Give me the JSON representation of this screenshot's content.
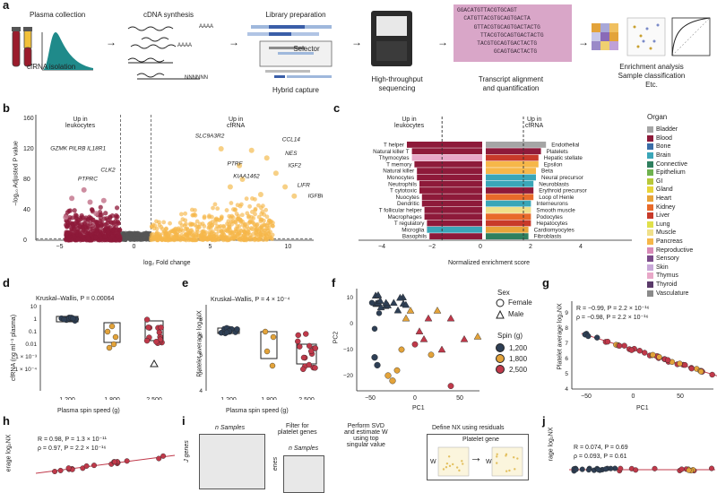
{
  "panel_a": {
    "label": "a",
    "steps": {
      "plasma": "Plasma collection",
      "cfrna": "cfRNA isolation",
      "cdna": "cDNA synthesis",
      "library": "Library preparation",
      "selector": "Selector",
      "hybrid": "Hybrid capture",
      "sequencing": "High-throughput\nsequencing",
      "alignment": "Transcript alignment\nand quantification",
      "enrichment": "Enrichment analysis\nSample classification\nEtc."
    },
    "cdna_tags": [
      "AAAA",
      "AAAA",
      "NNNNNN"
    ],
    "sequences": [
      "GGACATGTTACGTGCAGT",
      "  CATGTTACGTGCAGTGACTA",
      "     GTTACGTGCAGTGACTACTG",
      "       TTACGTGCAGTGACTACTG",
      "      TACGTGCAGTGACTACTG",
      "           GCAGTGACTACTG"
    ]
  },
  "panel_b": {
    "label": "b",
    "ylabel": "−log₁₀ Adjusted P value",
    "xlabel": "log₂ Fold change",
    "up_left": "Up in\nleukocytes",
    "up_right": "Up in\ncfRNA",
    "genes_left": [
      "GZMK",
      "PILRB",
      "IL18R1",
      "CLK2",
      "PTPRC"
    ],
    "genes_right": [
      "SLC9A3R2",
      "CCL14",
      "NES",
      "PTRF",
      "IGF2",
      "KIAA1462",
      "LIFR",
      "IGFBP5"
    ],
    "xticks": [
      "−5",
      "0",
      "5",
      "10"
    ],
    "yticks": [
      "0",
      "40",
      "80",
      "120",
      "160"
    ],
    "colors": {
      "left": "#8e1a3a",
      "right": "#f6b749",
      "mid": "#555555"
    }
  },
  "panel_c": {
    "label": "c",
    "up_left": "Up in\nleukocytes",
    "up_right": "Up in\ncfRNA",
    "xlabel": "Normalized enrichment score",
    "xticks": [
      "−4",
      "−2",
      "0",
      "2",
      "4"
    ],
    "left_labels": [
      "T helper",
      "Natural killer T",
      "Thymocytes",
      "T memory",
      "Natural killer",
      "Monocytes",
      "Neutrophils",
      "T cytotoxic",
      "Nuocytes",
      "Dendritic",
      "T follicular helper",
      "Macrophages",
      "T regulatory",
      "Microglia",
      "Basophils"
    ],
    "right_labels": [
      "Endothelial",
      "Platelets",
      "Hepatic stellate",
      "Epsilon",
      "Beta",
      "Neural precursor",
      "Neuroblasts",
      "Erythroid precursor",
      "Loop of Henle",
      "Interneurons",
      "Smooth muscle",
      "Podocytes",
      "Hepatocytes",
      "Cardiomyocytes",
      "Fibroblasts"
    ],
    "legend_title": "Organ",
    "legend": [
      {
        "name": "Bladder",
        "color": "#a5a5a5"
      },
      {
        "name": "Blood",
        "color": "#8e1a3a"
      },
      {
        "name": "Bone",
        "color": "#3a6ea8"
      },
      {
        "name": "Brain",
        "color": "#3aa6b8"
      },
      {
        "name": "Connective",
        "color": "#2f7f5f"
      },
      {
        "name": "Epithelium",
        "color": "#6fb24f"
      },
      {
        "name": "GI",
        "color": "#b8c83a"
      },
      {
        "name": "Gland",
        "color": "#e8d43a"
      },
      {
        "name": "Heart",
        "color": "#e8a33a"
      },
      {
        "name": "Kidney",
        "color": "#e86a2a"
      },
      {
        "name": "Liver",
        "color": "#c83a2a"
      },
      {
        "name": "Lung",
        "color": "#e0e04a"
      },
      {
        "name": "Muscle",
        "color": "#f0e08a"
      },
      {
        "name": "Pancreas",
        "color": "#f6b749"
      },
      {
        "name": "Reproductive",
        "color": "#d88ab8"
      },
      {
        "name": "Sensory",
        "color": "#7a4a8a"
      },
      {
        "name": "Skin",
        "color": "#c8a8d8"
      },
      {
        "name": "Thymus",
        "color": "#e8a8c8"
      },
      {
        "name": "Thyroid",
        "color": "#5a3a6a"
      },
      {
        "name": "Vasculature",
        "color": "#8a8a8a"
      }
    ]
  },
  "panel_d": {
    "label": "d",
    "title": "Kruskal–Wallis, P = 0.00064",
    "ylabel": "cfRNA (ng ml⁻¹ plasma)",
    "xlabel": "Plasma spin speed (g)",
    "xticks": [
      "1,200",
      "1,800",
      "2,500"
    ],
    "yticks": [
      "10",
      "1",
      "0.1",
      "0.01",
      "1 × 10⁻³",
      "1 × 10⁻⁴"
    ]
  },
  "panel_e": {
    "label": "e",
    "title": "Kruskal–Wallis, P = 4 × 10⁻⁴",
    "ylabel": "Platelet average log₂NX",
    "xlabel": "Plasma spin speed (g)",
    "xticks": [
      "1,200",
      "1,800",
      "2,500"
    ],
    "yticks": [
      "8",
      "7",
      "6",
      "5",
      "4"
    ]
  },
  "panel_f": {
    "label": "f",
    "xlabel": "PC1",
    "ylabel": "PC2",
    "xticks": [
      "−50",
      "0",
      "50"
    ],
    "yticks": [
      "10",
      "0",
      "−10",
      "−20"
    ],
    "sex_title": "Sex",
    "sex": [
      "Female",
      "Male"
    ],
    "spin_title": "Spin (g)",
    "spin": [
      {
        "name": "1,200",
        "color": "#2e3f55"
      },
      {
        "name": "1,800",
        "color": "#e3a33a"
      },
      {
        "name": "2,500",
        "color": "#c0394a"
      }
    ]
  },
  "panel_g": {
    "label": "g",
    "stat1": "R = −0.99, P = 2.2 × 10⁻¹⁶",
    "stat2": "ρ = −0.98, P = 2.2 × 10⁻¹⁶",
    "ylabel": "Platelet average log₂NX",
    "xlabel": "PC1",
    "xticks": [
      "−50",
      "0",
      "50"
    ],
    "yticks": [
      "9",
      "8",
      "7",
      "6",
      "5",
      "4"
    ]
  },
  "panel_h": {
    "label": "h",
    "stat1": "R = 0.98, P = 1.3 × 10⁻¹¹",
    "stat2": "ρ = 0.97, P = 2.2 × 10⁻¹⁶",
    "ylabel": "erage log₂NX"
  },
  "panel_i": {
    "label": "i",
    "step1": "n Samples",
    "genes": "J genes",
    "step2": "Filter for\nplatelet genes",
    "step2b": "n Samples",
    "genes2": "enes",
    "step3": "Perform SVD\nand estimate W\nusing top\nsingular value",
    "step4": "Define NX using residuals",
    "platelet_gene": "Platelet gene",
    "w": "W"
  },
  "panel_j": {
    "label": "j",
    "stat1": "R = 0.074, P = 0.69",
    "stat2": "ρ = 0.093, P = 0.61",
    "ylabel": "rage log₂NX"
  }
}
